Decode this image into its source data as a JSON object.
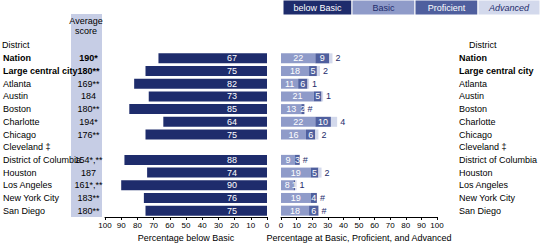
{
  "chart_data": {
    "type": "bar",
    "orientation": "horizontal",
    "stacked": true,
    "data_labels": true,
    "grid": false,
    "category_header": "District",
    "score_header": "Average score",
    "categories": [
      "Nation",
      "Large central city",
      "Atlanta",
      "Austin",
      "Boston",
      "Charlotte",
      "Chicago",
      "Cleveland ‡",
      "District of Columbia",
      "Houston",
      "Los Angeles",
      "New York City",
      "San Diego"
    ],
    "scores": [
      "190*",
      "180**",
      "169**",
      "184",
      "180**",
      "194*",
      "176**",
      null,
      "154*,**",
      "187",
      "161*,**",
      "183**",
      "180**"
    ],
    "x2lim": [
      0,
      100
    ],
    "x2ticks": [
      0,
      10,
      20,
      30,
      40,
      50,
      60,
      70,
      80,
      90,
      100
    ],
    "x2label": "Percentage below Basic",
    "xlim": [
      0,
      100
    ],
    "xticks": [
      0,
      10,
      20,
      30,
      40,
      50,
      60,
      70,
      80,
      90,
      100
    ],
    "xlabel": "Percentage at Basic, Proficient, and Advanced",
    "series": [
      {
        "name": "below Basic",
        "color": "#1e2c6c",
        "axis": "x2",
        "values": [
          67,
          75,
          82,
          73,
          85,
          64,
          75,
          null,
          88,
          74,
          90,
          76,
          75
        ]
      },
      {
        "name": "Basic",
        "color": "#8f9bc9",
        "values": [
          22,
          18,
          11,
          21,
          13,
          22,
          16,
          null,
          9,
          19,
          8,
          19,
          18
        ]
      },
      {
        "name": "Proficient",
        "color": "#4f5f9e",
        "values": [
          9,
          5,
          6,
          5,
          2,
          10,
          6,
          null,
          3,
          5,
          1,
          4,
          6
        ]
      },
      {
        "name": "Advanced",
        "color": "#d3d9ec",
        "values": [
          2,
          2,
          1,
          1,
          0,
          4,
          2,
          null,
          0,
          2,
          1,
          0,
          0
        ],
        "value_labels": [
          "2",
          "2",
          "1",
          "1",
          "#",
          "4",
          "2",
          null,
          "#",
          "2",
          "1",
          "#",
          "#"
        ]
      }
    ]
  }
}
